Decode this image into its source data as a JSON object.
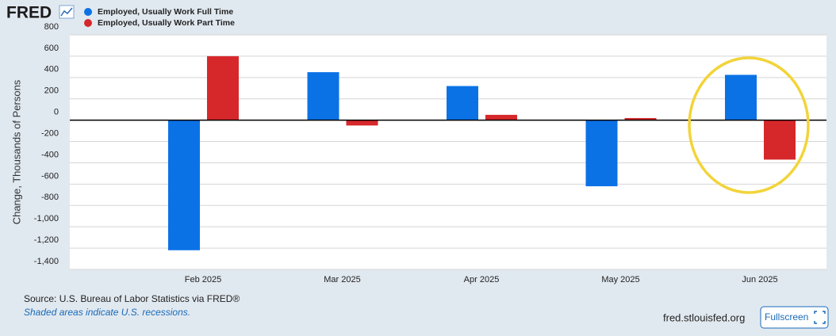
{
  "logo": "FRED",
  "chart_data": {
    "type": "bar",
    "y_label": "Change, Thousands of Persons",
    "categories": [
      "Feb 2025",
      "Mar 2025",
      "Apr 2025",
      "May 2025",
      "Jun 2025"
    ],
    "series": [
      {
        "name": "Employed, Usually Work Full Time",
        "color": "#0b72e6",
        "values": [
          -1220,
          450,
          320,
          -620,
          425
        ]
      },
      {
        "name": "Employed, Usually Work Part Time",
        "color": "#d6282b",
        "values": [
          600,
          -50,
          50,
          20,
          -370
        ]
      }
    ],
    "ylim": [
      -1400,
      800
    ],
    "yticks": [
      {
        "value": -1400,
        "label": "-1,400"
      },
      {
        "value": -1200,
        "label": "-1,200"
      },
      {
        "value": -1000,
        "label": "-1,000"
      },
      -800,
      -600,
      -400,
      -200,
      0,
      200,
      400,
      600,
      800
    ],
    "grid": true
  },
  "footer": {
    "source": "Source: U.S. Bureau of Labor Statistics via FRED®",
    "note": "Shaded areas indicate U.S. recessions.",
    "site": "fred.stlouisfed.org",
    "button": "Fullscreen"
  }
}
